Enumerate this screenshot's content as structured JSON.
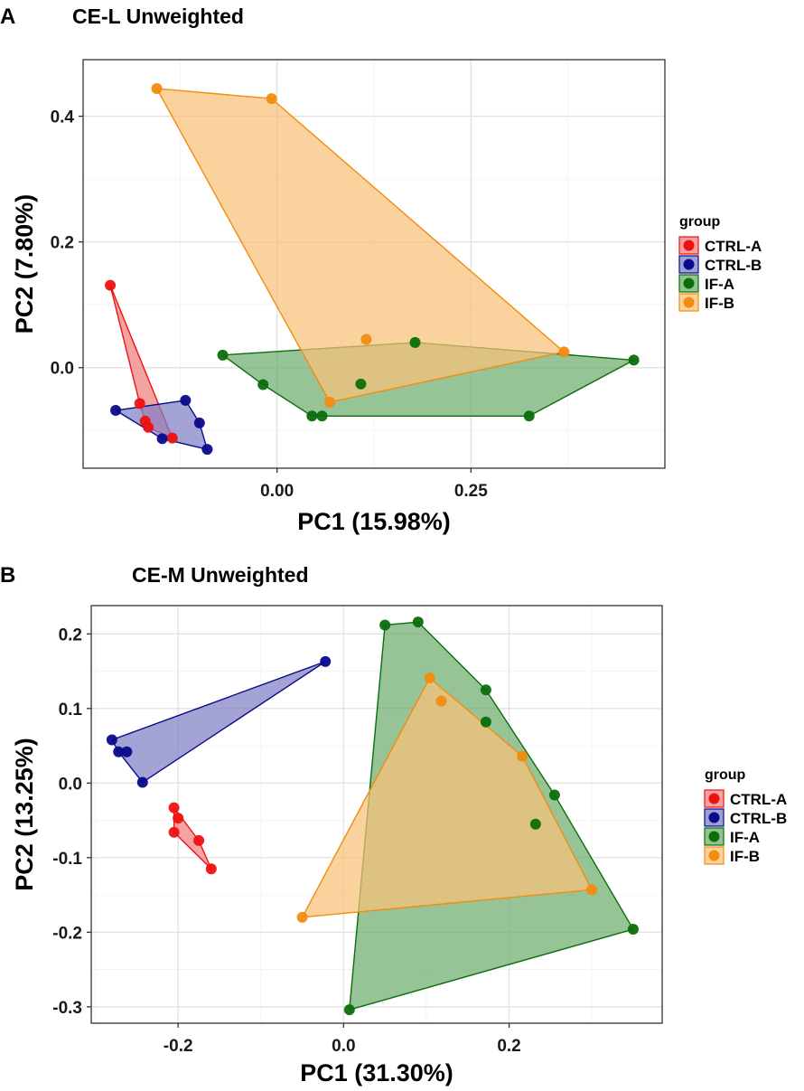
{
  "chart_data": [
    {
      "type": "scatter",
      "panel_label": "A",
      "title": "CE-L Unweighted",
      "xlabel": "PC1 (15.98%)",
      "ylabel": "PC2 (7.80%)",
      "xlim": [
        -0.25,
        0.5
      ],
      "ylim": [
        -0.16,
        0.49
      ],
      "xticks": [
        0.0,
        0.25
      ],
      "xtick_labels": [
        "0.00",
        "0.25"
      ],
      "yticks": [
        0.0,
        0.2,
        0.4
      ],
      "ytick_labels": [
        "0.0",
        "0.2",
        "0.4"
      ],
      "legend_title": "group",
      "series": [
        {
          "name": "CTRL-A",
          "color": "#ee1111",
          "fill": "#f08080",
          "points": [
            [
              -0.215,
              0.131
            ],
            [
              -0.177,
              -0.057
            ],
            [
              -0.17,
              -0.085
            ],
            [
              -0.166,
              -0.095
            ],
            [
              -0.135,
              -0.112
            ]
          ]
        },
        {
          "name": "CTRL-B",
          "color": "#0a0a8c",
          "fill": "#7f7fc6",
          "points": [
            [
              -0.208,
              -0.068
            ],
            [
              -0.118,
              -0.052
            ],
            [
              -0.1,
              -0.088
            ],
            [
              -0.148,
              -0.113
            ],
            [
              -0.09,
              -0.13
            ]
          ]
        },
        {
          "name": "IF-A",
          "color": "#0b6e0b",
          "fill": "#6fad6f",
          "points": [
            [
              -0.07,
              0.02
            ],
            [
              -0.018,
              -0.027
            ],
            [
              0.045,
              -0.077
            ],
            [
              0.058,
              -0.077
            ],
            [
              0.108,
              -0.026
            ],
            [
              0.178,
              0.04
            ],
            [
              0.325,
              -0.077
            ],
            [
              0.46,
              0.012
            ]
          ]
        },
        {
          "name": "IF-B",
          "color": "#f28c0f",
          "fill": "#f8c079",
          "points": [
            [
              -0.155,
              0.444
            ],
            [
              -0.007,
              0.428
            ],
            [
              0.115,
              0.045
            ],
            [
              0.068,
              -0.055
            ],
            [
              0.37,
              0.025
            ]
          ]
        }
      ]
    },
    {
      "type": "scatter",
      "panel_label": "B",
      "title": "CE-M Unweighted",
      "xlabel": "PC1 (31.30%)",
      "ylabel": "PC2 (13.25%)",
      "xlim": [
        -0.305,
        0.385
      ],
      "ylim": [
        -0.322,
        0.238
      ],
      "xticks": [
        -0.2,
        0.0,
        0.2
      ],
      "xtick_labels": [
        "-0.2",
        "0.0",
        "0.2"
      ],
      "yticks": [
        -0.3,
        -0.2,
        -0.1,
        0.0,
        0.1,
        0.2
      ],
      "ytick_labels": [
        "-0.3",
        "-0.2",
        "-0.1",
        "0.0",
        "0.1",
        "0.2"
      ],
      "legend_title": "group",
      "series": [
        {
          "name": "CTRL-A",
          "color": "#ee1111",
          "fill": "#f08080",
          "points": [
            [
              -0.205,
              -0.033
            ],
            [
              -0.2,
              -0.047
            ],
            [
              -0.205,
              -0.066
            ],
            [
              -0.175,
              -0.077
            ],
            [
              -0.16,
              -0.115
            ]
          ]
        },
        {
          "name": "CTRL-B",
          "color": "#0a0a8c",
          "fill": "#7f7fc6",
          "points": [
            [
              -0.28,
              0.058
            ],
            [
              -0.272,
              0.042
            ],
            [
              -0.262,
              0.042
            ],
            [
              -0.243,
              0.001
            ],
            [
              -0.022,
              0.163
            ]
          ]
        },
        {
          "name": "IF-A",
          "color": "#0b6e0b",
          "fill": "#6fad6f",
          "points": [
            [
              0.05,
              0.212
            ],
            [
              0.09,
              0.216
            ],
            [
              0.172,
              0.125
            ],
            [
              0.172,
              0.082
            ],
            [
              0.255,
              -0.016
            ],
            [
              0.232,
              -0.055
            ],
            [
              0.35,
              -0.196
            ],
            [
              0.007,
              -0.304
            ]
          ]
        },
        {
          "name": "IF-B",
          "color": "#f28c0f",
          "fill": "#f8c079",
          "points": [
            [
              0.104,
              0.141
            ],
            [
              0.118,
              0.11
            ],
            [
              0.216,
              0.036
            ],
            [
              0.3,
              -0.143
            ],
            [
              -0.05,
              -0.18
            ]
          ]
        }
      ]
    }
  ]
}
